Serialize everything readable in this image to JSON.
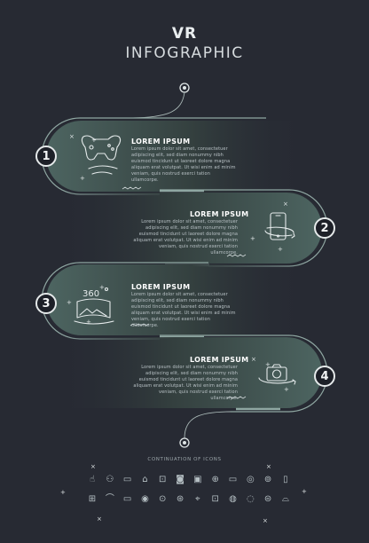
{
  "header": {
    "title": "VR",
    "subtitle": "INFOGRAPHIC"
  },
  "steps": [
    {
      "number": "1",
      "heading": "LOREM IPSUM",
      "icon": "vr-gamepad-icon",
      "body": "Lorem ipsum dolor sit amet, consectetuer adipiscing elit, sed diam nonummy nibh euismod tincidunt ut laoreet dolore magna aliquam erat volutpat. Ut wisi enim ad minim veniam, quis nostrud exerci tation ullamcorpe."
    },
    {
      "number": "2",
      "heading": "LOREM IPSUM",
      "icon": "smartphone-rotate-icon",
      "body": "Lorem ipsum dolor sit amet, consectetuer adipiscing elit, sed diam nonummy nibh euismod tincidunt ut laoreet dolore magna aliquam erat volutpat. Ut wisi enim ad minim veniam, quis nostrud exerci tation ullamcorpe."
    },
    {
      "number": "3",
      "heading": "LOREM IPSUM",
      "icon": "panorama-360-icon",
      "icon_text": "360",
      "body": "Lorem ipsum dolor sit amet, consectetuer adipiscing elit, sed diam nonummy nibh euismod tincidunt ut laoreet dolore magna aliquam erat volutpat. Ut wisi enim ad minim veniam, quis nostrud exerci tation ullamcorpe."
    },
    {
      "number": "4",
      "heading": "LOREM IPSUM",
      "icon": "camera-360-icon",
      "body": "Lorem ipsum dolor sit amet, consectetuer adipiscing elit, sed diam nonummy nibh euismod tincidunt ut laoreet dolore magna aliquam erat volutpat. Ut wisi enim ad minim veniam, quis nostrud exerci tation ullamcorpe."
    }
  ],
  "footer": {
    "caption": "CONTINUATION OF ICONS",
    "icons_row1": [
      "☝",
      "⚇",
      "▭",
      "⌂",
      "⊡",
      "◙",
      "▣",
      "⊕",
      "▭",
      "◎",
      "⊚",
      "▯"
    ],
    "icons_row2": [
      "⊞",
      "⌒",
      "▭",
      "◉",
      "⊙",
      "⊛",
      "⌖",
      "⊡",
      "◍",
      "◌",
      "⊜",
      "⌓"
    ]
  },
  "colors": {
    "background": "#272a33",
    "panel": "#3c4e4b",
    "outline": "#8fa7a2",
    "accent": "#e5e9ea"
  }
}
